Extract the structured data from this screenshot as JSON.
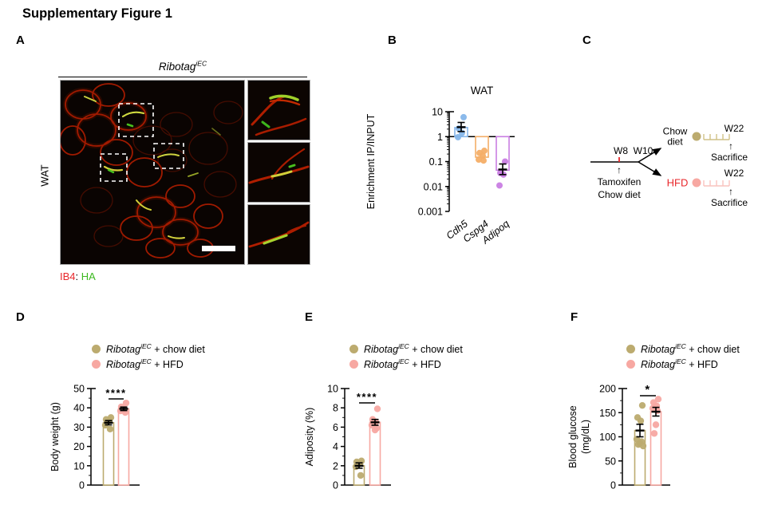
{
  "figure_title": "Supplementary Figure 1",
  "colors": {
    "ib4": "#e8262a",
    "ha": "#3cb820",
    "chow": "#bcab6f",
    "chow_light": "#cfc187",
    "hfd_fill": "#f7a8a2",
    "hfd_light": "#f9c3be",
    "hfd_text": "#e8262a",
    "cdh5_blue": "#85b6ea",
    "cspg4_orange": "#f4ae67",
    "adipoq_purple": "#c97ee3"
  },
  "legend": {
    "gene": "Ribotag",
    "sup": "iEC",
    "rows": [
      {
        "suffix": " + chow diet"
      },
      {
        "suffix": " + HFD"
      }
    ]
  },
  "panelA": {
    "label": "A",
    "header_gene": "Ribotag",
    "header_sup": "iEC",
    "side_label": "WAT",
    "caption": {
      "ib4": "IB4",
      "colon": ": ",
      "ha": "HA"
    }
  },
  "panelB": {
    "label": "B",
    "chart_data": {
      "type": "bar",
      "title": "WAT",
      "ylabel": "Enrichment IP/INPUT",
      "yscale": "log",
      "ylim": [
        0.001,
        10
      ],
      "yticks": [
        10,
        1,
        0.1,
        0.01,
        0.001
      ],
      "baseline": 1,
      "categories": [
        "Cdh5",
        "Cspg4",
        "Adipoq"
      ],
      "series": [
        {
          "name": "Cdh5",
          "color": "#85b6ea",
          "bar": 2.3,
          "err": {
            "mean": 2.4,
            "lo": 1.6,
            "hi": 3.7
          },
          "points": [
            6.0,
            2.1,
            1.4,
            0.95
          ]
        },
        {
          "name": "Cspg4",
          "color": "#f4ae67",
          "bar": 0.15,
          "points": [
            0.27,
            0.22,
            0.17,
            0.12,
            0.11
          ]
        },
        {
          "name": "Adipoq",
          "color": "#c97ee3",
          "bar": 0.045,
          "err": {
            "mean": 0.048,
            "lo": 0.03,
            "hi": 0.08
          },
          "points": [
            0.1,
            0.035,
            0.03,
            0.011
          ]
        }
      ]
    }
  },
  "panelC": {
    "label": "C",
    "timeline": {
      "w8": "W8",
      "w10": "W10",
      "up_arrow": "↑",
      "tamoxifen": "Tamoxifen",
      "chow_diet": "Chow diet",
      "branch_chow_line1": "Chow",
      "branch_chow_line2": "diet",
      "hfd": "HFD",
      "w22": "W22",
      "sacrifice": "Sacrifice"
    }
  },
  "panelD": {
    "label": "D",
    "chart_data": {
      "type": "bar",
      "ylabel": [
        "Body weight (g)"
      ],
      "ylim": [
        0,
        50
      ],
      "yticks": [
        0,
        10,
        20,
        30,
        40,
        50
      ],
      "baseline": 0,
      "significance": "****",
      "categories": [
        "chow diet",
        "HFD"
      ],
      "series": [
        {
          "name": "Ribotag iEC + chow diet",
          "color": "#bcab6f",
          "bar": 32.3,
          "err": {
            "lo": 31.2,
            "hi": 33.4
          },
          "points": [
            35,
            34,
            33.3,
            31,
            29
          ]
        },
        {
          "name": "Ribotag iEC + HFD",
          "color": "#f7a8a2",
          "bar": 39.5,
          "err": {
            "lo": 38.6,
            "hi": 40.4
          },
          "points": [
            42.5,
            40.5,
            39.3,
            38.4,
            37.6
          ]
        }
      ]
    }
  },
  "panelE": {
    "label": "E",
    "chart_data": {
      "type": "bar",
      "ylabel": [
        "Adiposity (%)"
      ],
      "ylim": [
        0,
        10
      ],
      "yticks": [
        0,
        2,
        4,
        6,
        8,
        10
      ],
      "baseline": 0,
      "significance": "****",
      "categories": [
        "chow diet",
        "HFD"
      ],
      "series": [
        {
          "name": "Ribotag iEC + chow diet",
          "color": "#bcab6f",
          "bar": 2.0,
          "err": {
            "lo": 1.75,
            "hi": 2.3
          },
          "points": [
            2.5,
            2.4,
            2.2,
            1.9,
            1.0
          ]
        },
        {
          "name": "Ribotag iEC + HFD",
          "color": "#f7a8a2",
          "bar": 6.5,
          "err": {
            "lo": 6.2,
            "hi": 6.8
          },
          "points": [
            7.9,
            6.8,
            6.55,
            6.2,
            5.9,
            5.7
          ]
        }
      ]
    }
  },
  "panelF": {
    "label": "F",
    "chart_data": {
      "type": "bar",
      "ylabel": [
        "Blood glucose",
        "(mg/dL)"
      ],
      "ylim": [
        0,
        200
      ],
      "yticks": [
        0,
        50,
        100,
        150,
        200
      ],
      "baseline": 0,
      "significance": "*",
      "categories": [
        "chow diet",
        "HFD"
      ],
      "series": [
        {
          "name": "Ribotag iEC + chow diet",
          "color": "#bcab6f",
          "bar": 113,
          "err": {
            "lo": 100,
            "hi": 126
          },
          "points": [
            165,
            140,
            133,
            95,
            90,
            87,
            84,
            81
          ]
        },
        {
          "name": "Ribotag iEC + HFD",
          "color": "#f7a8a2",
          "bar": 152,
          "err": {
            "lo": 143,
            "hi": 161
          },
          "points": [
            178,
            171,
            164,
            159,
            154,
            125,
            107
          ]
        }
      ]
    }
  }
}
